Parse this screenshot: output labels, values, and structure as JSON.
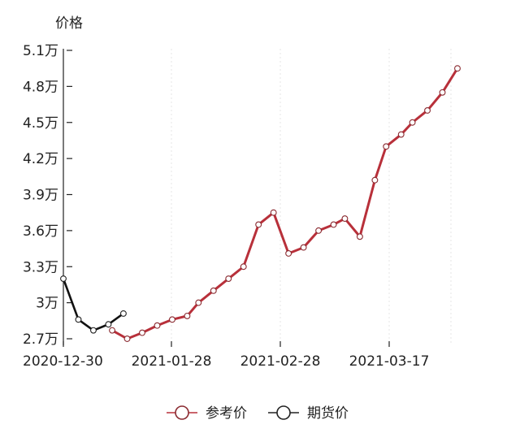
{
  "chart_data": {
    "type": "line",
    "ylabel": "价格",
    "y_ticks": [
      {
        "value": 27000,
        "label": "2.7万"
      },
      {
        "value": 30000,
        "label": "3万"
      },
      {
        "value": 33000,
        "label": "3.3万"
      },
      {
        "value": 36000,
        "label": "3.6万"
      },
      {
        "value": 39000,
        "label": "3.9万"
      },
      {
        "value": 42000,
        "label": "4.2万"
      },
      {
        "value": 45000,
        "label": "4.5万"
      },
      {
        "value": 48000,
        "label": "4.8万"
      },
      {
        "value": 51000,
        "label": "5.1万"
      }
    ],
    "ylim": [
      26800,
      51000
    ],
    "x_ticks": [
      {
        "value": "2020-12-30",
        "label": "2020-12-30"
      },
      {
        "value": "2021-01-28",
        "label": "2021-01-28"
      },
      {
        "value": "2021-02-28",
        "label": "2021-02-28"
      },
      {
        "value": "2021-03-17",
        "label": "2021-03-17"
      }
    ],
    "xlim": [
      "2020-12-30",
      "2021-04-08"
    ],
    "grid": {
      "vertical": true,
      "horizontal": false
    },
    "legend_position": "bottom-center",
    "series": [
      {
        "name": "参考价",
        "color": "#b8303a",
        "points": [
          {
            "x": "2021-01-12",
            "y": 27700
          },
          {
            "x": "2021-01-16",
            "y": 27000
          },
          {
            "x": "2021-01-20",
            "y": 27500
          },
          {
            "x": "2021-01-24",
            "y": 28100
          },
          {
            "x": "2021-01-28",
            "y": 28600
          },
          {
            "x": "2021-02-01",
            "y": 28900
          },
          {
            "x": "2021-02-04",
            "y": 30000
          },
          {
            "x": "2021-02-08",
            "y": 31000
          },
          {
            "x": "2021-02-12",
            "y": 32000
          },
          {
            "x": "2021-02-16",
            "y": 33000
          },
          {
            "x": "2021-02-20",
            "y": 36500
          },
          {
            "x": "2021-02-24",
            "y": 37500
          },
          {
            "x": "2021-02-28",
            "y": 34100
          },
          {
            "x": "2021-03-04",
            "y": 34600
          },
          {
            "x": "2021-03-08",
            "y": 36000
          },
          {
            "x": "2021-03-12",
            "y": 36500
          },
          {
            "x": "2021-03-15",
            "y": 37000
          },
          {
            "x": "2021-03-19",
            "y": 35500
          },
          {
            "x": "2021-03-23",
            "y": 40200
          },
          {
            "x": "2021-03-26",
            "y": 43000
          },
          {
            "x": "2021-03-30",
            "y": 44000
          },
          {
            "x": "2021-04-02",
            "y": 45000
          },
          {
            "x": "2021-04-06",
            "y": 46000
          },
          {
            "x": "2021-04-10",
            "y": 47500
          },
          {
            "x": "2021-04-14",
            "y": 49500
          }
        ]
      },
      {
        "name": "期货价",
        "color": "#111111",
        "points": [
          {
            "x": "2020-12-30",
            "y": 32000
          },
          {
            "x": "2021-01-03",
            "y": 28600
          },
          {
            "x": "2021-01-07",
            "y": 27700
          },
          {
            "x": "2021-01-11",
            "y": 28200
          },
          {
            "x": "2021-01-15",
            "y": 29100
          }
        ]
      }
    ]
  }
}
